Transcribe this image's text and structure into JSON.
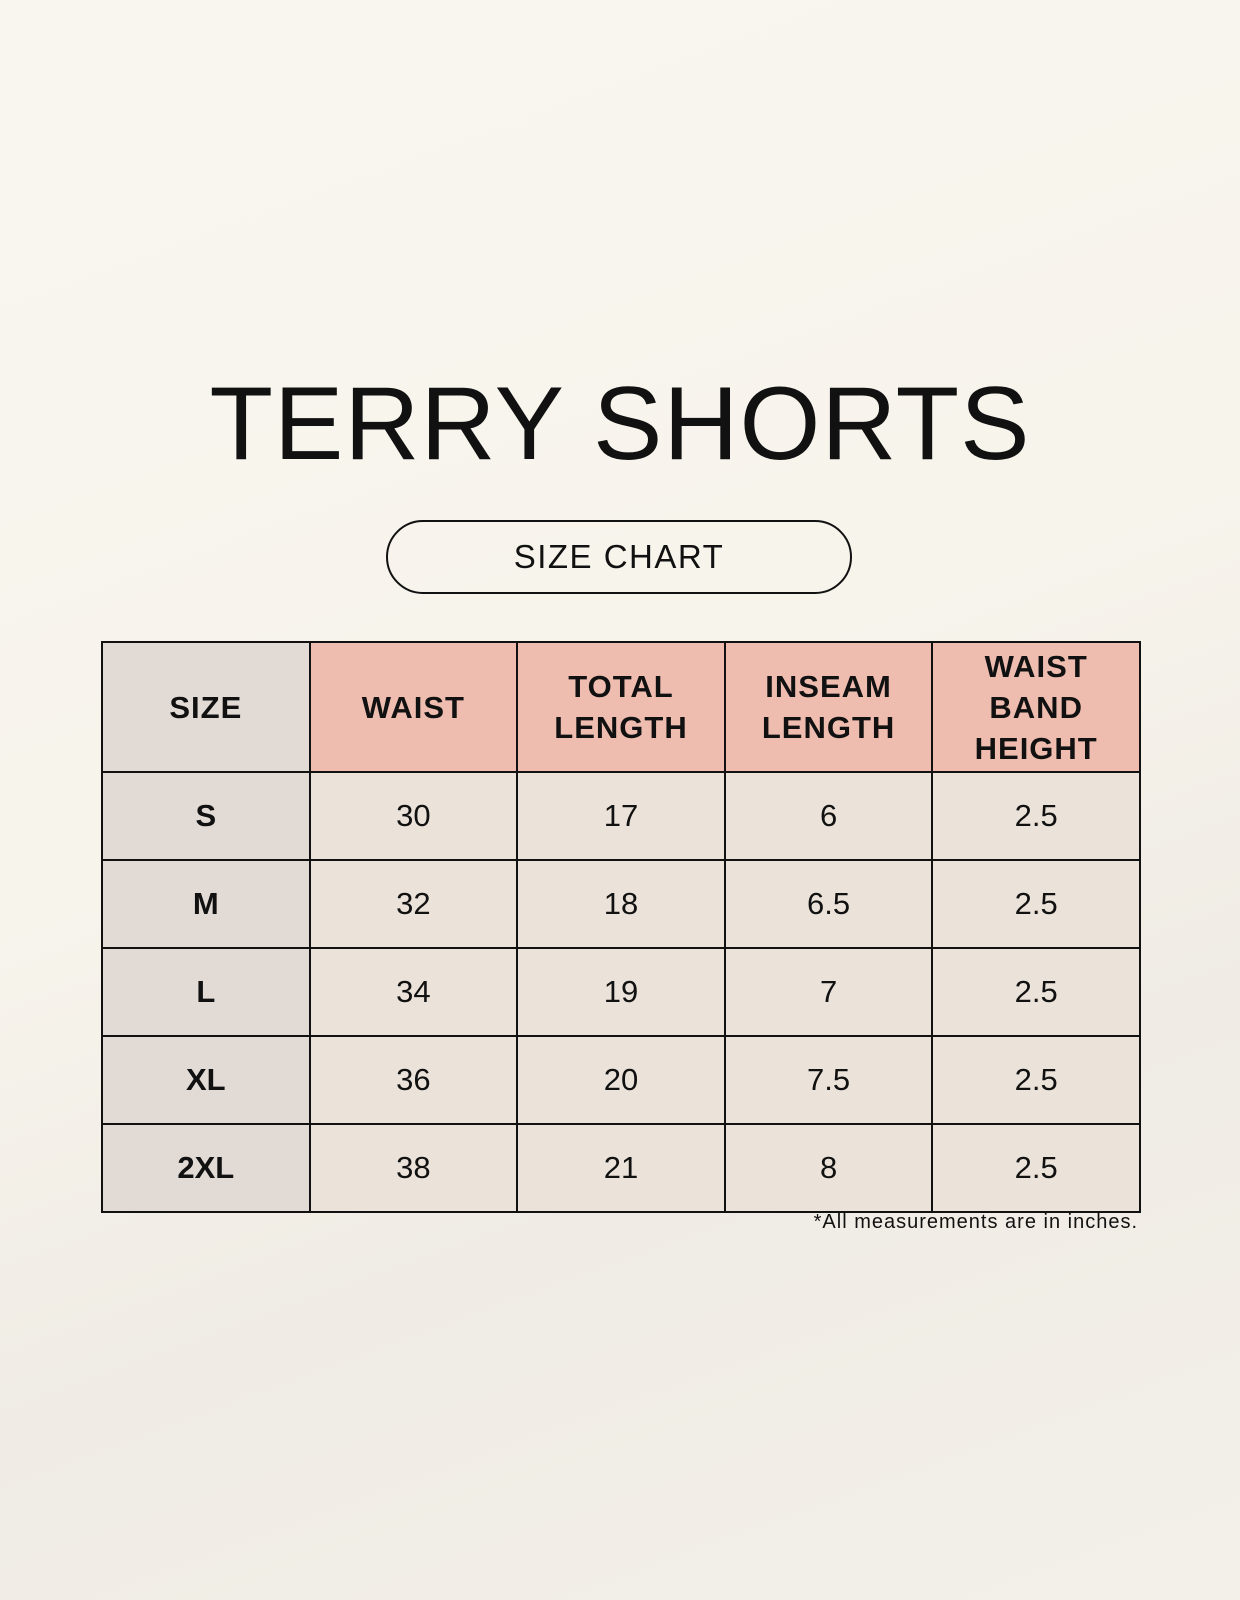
{
  "title": "TERRY SHORTS",
  "subtitle": "SIZE CHART",
  "colors": {
    "header_accent": "#efbdb0",
    "size_column": "#e2dad5",
    "cell": "#ebe3d9"
  },
  "table": {
    "headers": [
      "SIZE",
      "WAIST",
      "TOTAL LENGTH",
      "INSEAM LENGTH",
      "WAIST BAND HEIGHT"
    ],
    "rows": [
      [
        "S",
        "30",
        "17",
        "6",
        "2.5"
      ],
      [
        "M",
        "32",
        "18",
        "6.5",
        "2.5"
      ],
      [
        "L",
        "34",
        "19",
        "7",
        "2.5"
      ],
      [
        "XL",
        "36",
        "20",
        "7.5",
        "2.5"
      ],
      [
        "2XL",
        "38",
        "21",
        "8",
        "2.5"
      ]
    ]
  },
  "footnote": "*All measurements are in inches."
}
